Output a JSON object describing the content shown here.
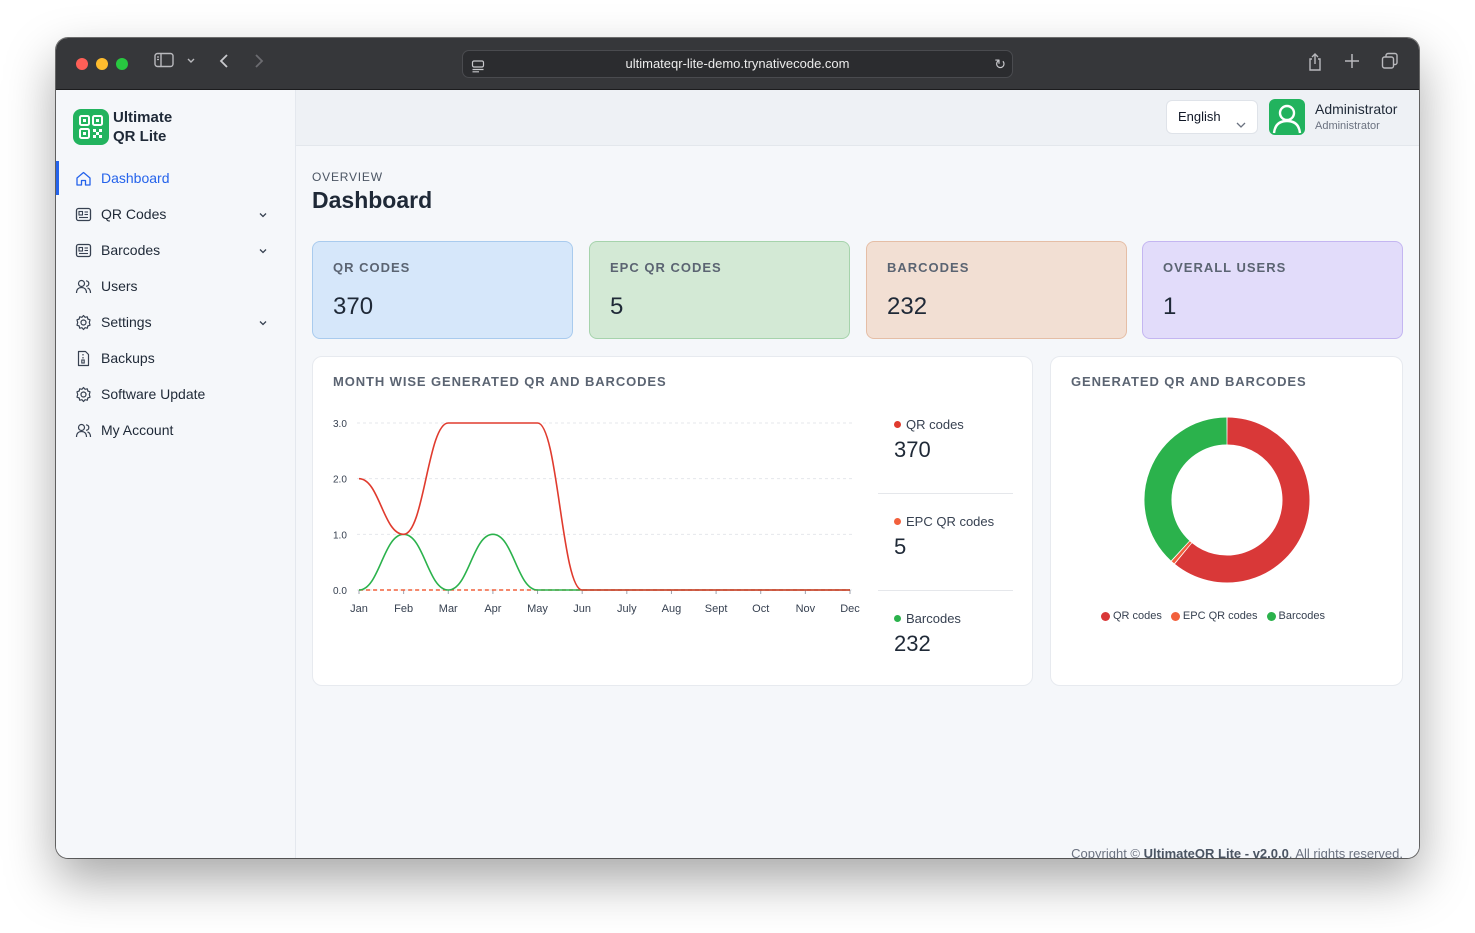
{
  "browser": {
    "url": "ultimateqr-lite-demo.trynativecode.com"
  },
  "brand": {
    "line1": "Ultimate",
    "line2": "QR Lite",
    "color": "#22b35e"
  },
  "sidebar": {
    "items": [
      {
        "label": "Dashboard",
        "icon": "home-icon",
        "active": true
      },
      {
        "label": "QR Codes",
        "icon": "qr-code-icon",
        "expandable": true
      },
      {
        "label": "Barcodes",
        "icon": "barcode-icon",
        "expandable": true
      },
      {
        "label": "Users",
        "icon": "users-icon"
      },
      {
        "label": "Settings",
        "icon": "gear-icon",
        "expandable": true
      },
      {
        "label": "Backups",
        "icon": "file-icon"
      },
      {
        "label": "Software Update",
        "icon": "update-gear-icon"
      },
      {
        "label": "My Account",
        "icon": "user-icon"
      }
    ]
  },
  "topbar": {
    "language": "English",
    "user_name": "Administrator",
    "user_role": "Administrator"
  },
  "page": {
    "overline": "OVERVIEW",
    "title": "Dashboard"
  },
  "stats": [
    {
      "label": "QR CODES",
      "value": "370"
    },
    {
      "label": "EPC QR CODES",
      "value": "5"
    },
    {
      "label": "BARCODES",
      "value": "232"
    },
    {
      "label": "OVERALL USERS",
      "value": "1"
    }
  ],
  "line_panel": {
    "title": "MONTH WISE GENERATED QR AND BARCODES",
    "legend": [
      {
        "name": "QR codes",
        "value": "370",
        "color": "#e03b2e"
      },
      {
        "name": "EPC QR codes",
        "value": "5",
        "color": "#f2603c"
      },
      {
        "name": "Barcodes",
        "value": "232",
        "color": "#2bb24c"
      }
    ]
  },
  "donut_panel": {
    "title": "GENERATED QR AND BARCODES",
    "legend": [
      {
        "name": "QR codes",
        "color": "#d93838"
      },
      {
        "name": "EPC QR codes",
        "color": "#f2603c"
      },
      {
        "name": "Barcodes",
        "color": "#2bb24c"
      }
    ]
  },
  "chart_data": [
    {
      "type": "line",
      "x": [
        "Jan",
        "Feb",
        "Mar",
        "Apr",
        "May",
        "Jun",
        "July",
        "Aug",
        "Sept",
        "Oct",
        "Nov",
        "Dec"
      ],
      "y_ticks": [
        "0.0",
        "1.0",
        "2.0",
        "3.0"
      ],
      "ylim": [
        0,
        3
      ],
      "grid": true,
      "smooth": true,
      "series": [
        {
          "name": "QR codes",
          "color": "#e03b2e",
          "values": [
            2,
            1,
            3,
            3,
            3,
            0,
            0,
            0,
            0,
            0,
            0,
            0
          ]
        },
        {
          "name": "EPC QR codes",
          "color": "#f2603c",
          "values": [
            0,
            0,
            0,
            0,
            0,
            0,
            0,
            0,
            0,
            0,
            0,
            0
          ]
        },
        {
          "name": "Barcodes",
          "color": "#2bb24c",
          "values": [
            0,
            1,
            0,
            1,
            0,
            0,
            0,
            0,
            0,
            0,
            0,
            0
          ]
        }
      ]
    },
    {
      "type": "pie",
      "style": "donut",
      "labels": [
        "QR codes",
        "EPC QR codes",
        "Barcodes"
      ],
      "values": [
        370,
        5,
        232
      ],
      "colors": [
        "#d93838",
        "#f2603c",
        "#2bb24c"
      ]
    }
  ],
  "footer": {
    "prefix": "Copyright ©",
    "product": "UltimateQR Lite - v2.0.0",
    "suffix": ". All rights reserved."
  }
}
